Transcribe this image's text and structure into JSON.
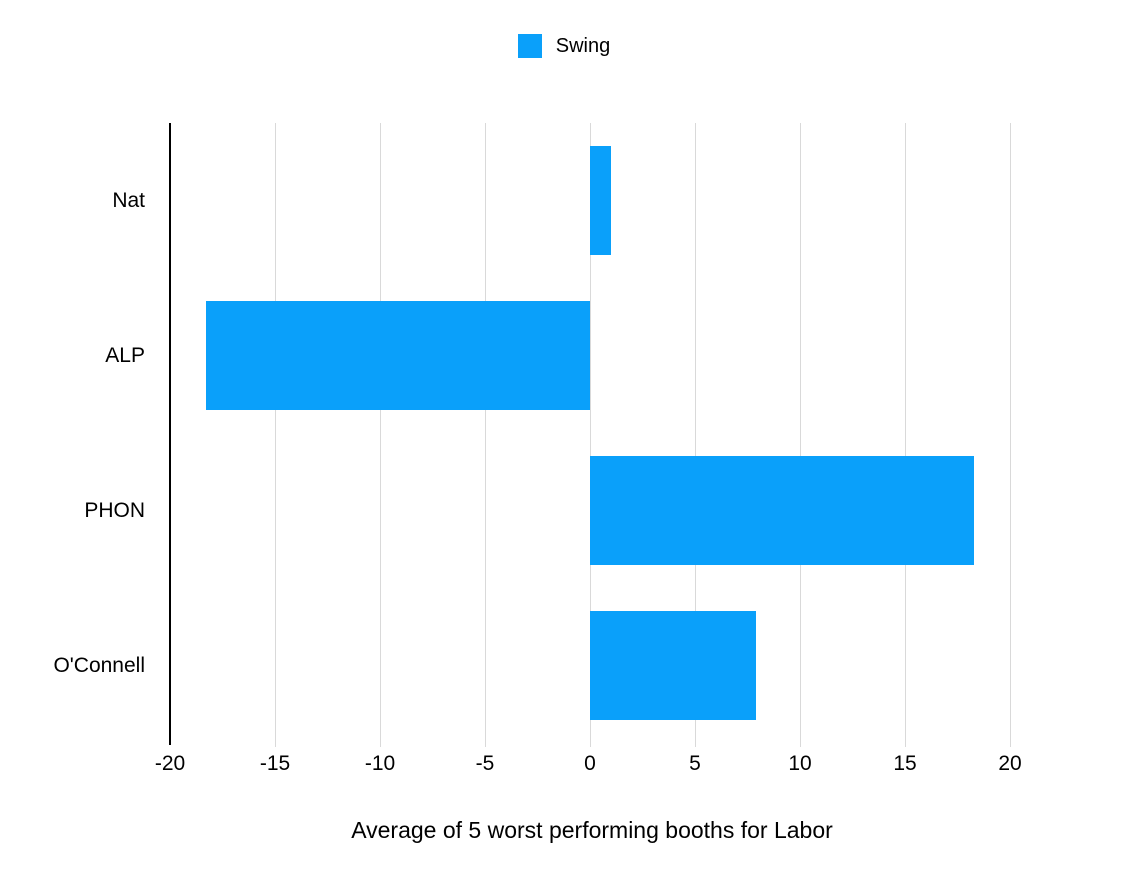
{
  "legend": {
    "label": "Swing",
    "swatch_icon": "square-swatch-icon"
  },
  "colors": {
    "bar": "#0aa0fa",
    "gridline": "#d9d9d9",
    "axis_line": "#000000",
    "text": "#000000",
    "background": "#ffffff"
  },
  "chart_data": {
    "type": "bar",
    "orientation": "horizontal",
    "title": "",
    "xlabel": "Average of 5 worst performing booths for Labor",
    "ylabel": "",
    "categories": [
      "Nat",
      "ALP",
      "PHON",
      "O'Connell"
    ],
    "series": [
      {
        "name": "Swing",
        "values": [
          1.0,
          -18.3,
          18.3,
          7.9
        ]
      }
    ],
    "xlim": [
      -20,
      24
    ],
    "xticks": [
      -20,
      -15,
      -10,
      -5,
      0,
      5,
      10,
      15,
      20
    ],
    "grid": true,
    "legend_position": "top-center",
    "bar_fill_fraction": 0.7
  }
}
